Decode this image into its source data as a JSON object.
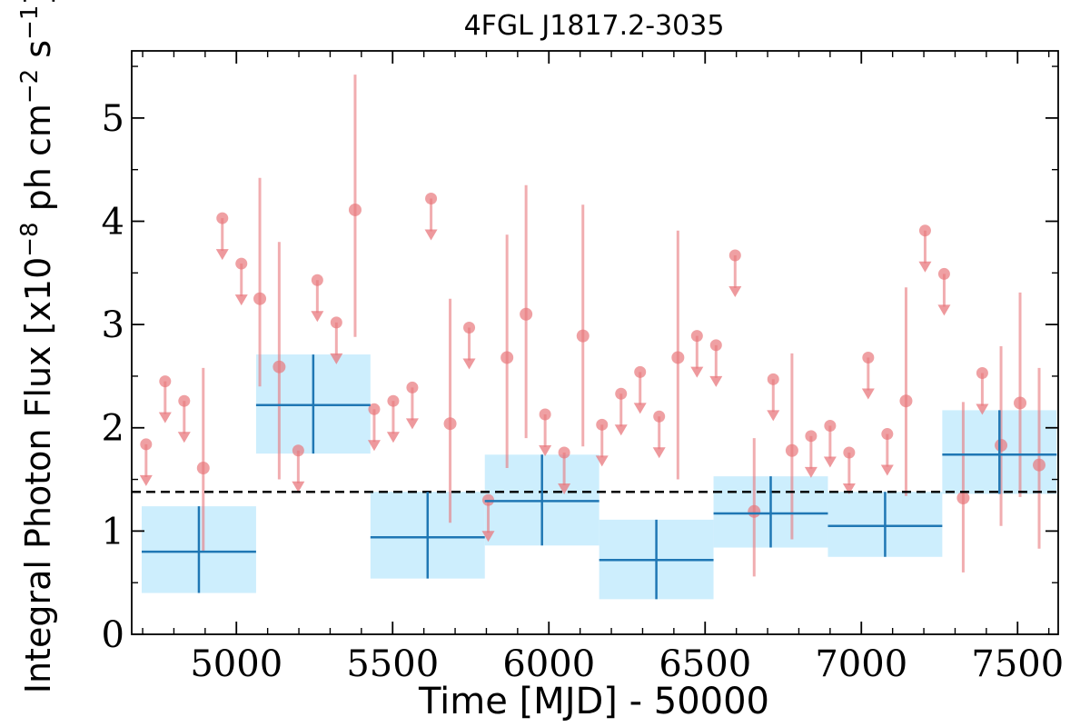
{
  "chart_data": {
    "type": "scatter",
    "title": "4FGL J1817.2-3035",
    "xlabel": "Time [MJD] - 50000",
    "ylabel": "Integral Photon Flux [x10",
    "ylabel_exp1": "−8",
    "ylabel_mid": " ph cm",
    "ylabel_exp2": "−2",
    "ylabel_mid2": " s",
    "ylabel_exp3": "−1",
    "ylabel_end": "]",
    "xlim": [
      4665,
      7630
    ],
    "ylim": [
      0,
      5.65
    ],
    "xticks": [
      "5000",
      "5500",
      "6000",
      "6500",
      "7000",
      "7500"
    ],
    "xtick_values": [
      5000,
      5500,
      6000,
      6500,
      7000,
      7500
    ],
    "yticks": [
      "0",
      "1",
      "2",
      "3",
      "4",
      "5"
    ],
    "ytick_values": [
      0,
      1,
      2,
      3,
      4,
      5
    ],
    "average_flux": 1.38,
    "colors": {
      "points": "#e8777c",
      "bins_fill": "#cdeefd",
      "bins_line": "#1f77b4",
      "average_line": "#000000"
    },
    "long_bins": [
      {
        "x0": 4697,
        "x1": 5063,
        "center": 4880,
        "flux": 0.8,
        "low": 0.4,
        "high": 1.24
      },
      {
        "x0": 5063,
        "x1": 5429,
        "center": 5246,
        "flux": 2.22,
        "low": 1.75,
        "high": 2.71
      },
      {
        "x0": 5429,
        "x1": 5795,
        "center": 5612,
        "flux": 0.94,
        "low": 0.54,
        "high": 1.38
      },
      {
        "x0": 5795,
        "x1": 6161,
        "center": 5978,
        "flux": 1.29,
        "low": 0.86,
        "high": 1.74
      },
      {
        "x0": 6161,
        "x1": 6527,
        "center": 6344,
        "flux": 0.72,
        "low": 0.34,
        "high": 1.11
      },
      {
        "x0": 6527,
        "x1": 6893,
        "center": 6710,
        "flux": 1.17,
        "low": 0.84,
        "high": 1.53
      },
      {
        "x0": 6893,
        "x1": 7259,
        "center": 7076,
        "flux": 1.05,
        "low": 0.75,
        "high": 1.38
      },
      {
        "x0": 7259,
        "x1": 7625,
        "center": 7442,
        "flux": 1.74,
        "low": 1.36,
        "high": 2.17
      }
    ],
    "detections": [
      {
        "x": 4894,
        "y": 1.61,
        "low": 0.8,
        "high": 2.58
      },
      {
        "x": 5075,
        "y": 3.25,
        "low": 2.4,
        "high": 4.42
      },
      {
        "x": 5137,
        "y": 2.59,
        "low": 1.5,
        "high": 3.8
      },
      {
        "x": 5380,
        "y": 4.11,
        "low": 2.88,
        "high": 5.42
      },
      {
        "x": 5684,
        "y": 2.04,
        "low": 1.08,
        "high": 3.25
      },
      {
        "x": 5866,
        "y": 2.68,
        "low": 1.61,
        "high": 3.87
      },
      {
        "x": 5927,
        "y": 3.1,
        "low": 1.9,
        "high": 4.35
      },
      {
        "x": 6109,
        "y": 2.89,
        "low": 1.82,
        "high": 4.16
      },
      {
        "x": 6413,
        "y": 2.68,
        "low": 1.5,
        "high": 3.91
      },
      {
        "x": 6657,
        "y": 1.19,
        "low": 0.56,
        "high": 1.9
      },
      {
        "x": 6778,
        "y": 1.78,
        "low": 0.92,
        "high": 2.72
      },
      {
        "x": 7143,
        "y": 2.26,
        "low": 1.34,
        "high": 3.36
      },
      {
        "x": 7326,
        "y": 1.32,
        "low": 0.6,
        "high": 2.25
      },
      {
        "x": 7447,
        "y": 1.83,
        "low": 1.05,
        "high": 2.79
      },
      {
        "x": 7508,
        "y": 2.24,
        "low": 1.33,
        "high": 3.31
      },
      {
        "x": 7569,
        "y": 1.64,
        "low": 0.83,
        "high": 2.58
      }
    ],
    "upper_limits": [
      {
        "x": 4711,
        "y": 1.84
      },
      {
        "x": 4772,
        "y": 2.45
      },
      {
        "x": 4833,
        "y": 2.26
      },
      {
        "x": 4955,
        "y": 4.03
      },
      {
        "x": 5016,
        "y": 3.59
      },
      {
        "x": 5198,
        "y": 1.78
      },
      {
        "x": 5259,
        "y": 3.43
      },
      {
        "x": 5320,
        "y": 3.02
      },
      {
        "x": 5441,
        "y": 2.18
      },
      {
        "x": 5502,
        "y": 2.26
      },
      {
        "x": 5563,
        "y": 2.39
      },
      {
        "x": 5623,
        "y": 4.22
      },
      {
        "x": 5745,
        "y": 2.97
      },
      {
        "x": 5806,
        "y": 1.3
      },
      {
        "x": 5988,
        "y": 2.13
      },
      {
        "x": 6049,
        "y": 1.76
      },
      {
        "x": 6170,
        "y": 2.03
      },
      {
        "x": 6231,
        "y": 2.33
      },
      {
        "x": 6292,
        "y": 2.54
      },
      {
        "x": 6353,
        "y": 2.11
      },
      {
        "x": 6474,
        "y": 2.89
      },
      {
        "x": 6535,
        "y": 2.8
      },
      {
        "x": 6596,
        "y": 3.67
      },
      {
        "x": 6718,
        "y": 2.47
      },
      {
        "x": 6839,
        "y": 1.92
      },
      {
        "x": 6900,
        "y": 2.02
      },
      {
        "x": 6961,
        "y": 1.76
      },
      {
        "x": 7022,
        "y": 2.68
      },
      {
        "x": 7083,
        "y": 1.94
      },
      {
        "x": 7204,
        "y": 3.91
      },
      {
        "x": 7265,
        "y": 3.49
      },
      {
        "x": 7387,
        "y": 2.53
      }
    ]
  }
}
